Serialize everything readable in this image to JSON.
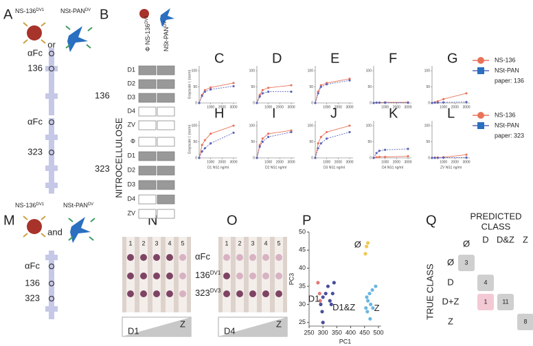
{
  "panel_labels": [
    "A",
    "B",
    "M",
    "N",
    "O",
    "P",
    "Q"
  ],
  "antibodies": [
    {
      "name": "NS-136",
      "sup": "DV1"
    },
    {
      "name": "NSt-PAN",
      "sup": "DV"
    }
  ],
  "panel_a": {
    "or": "or",
    "strips": [
      [
        "αFc",
        "136"
      ],
      [
        "αFc",
        "323"
      ]
    ]
  },
  "panel_b": {
    "phi": "Φ",
    "side_label": "NITROCELLULOSE",
    "strips": [
      {
        "label": "136",
        "rows": [
          "D1",
          "D2",
          "D3",
          "D4",
          "ZV"
        ],
        "filled": [
          [
            true,
            true
          ],
          [
            true,
            true
          ],
          [
            true,
            true
          ],
          [
            false,
            false
          ],
          [
            false,
            false
          ]
        ]
      },
      {
        "label": "323",
        "rows": [
          "Φ",
          "D1",
          "D2",
          "D3",
          "D4",
          "ZV"
        ],
        "filled": [
          [
            false,
            false
          ],
          [
            true,
            true
          ],
          [
            true,
            true
          ],
          [
            true,
            true
          ],
          [
            false,
            true
          ],
          [
            false,
            false
          ]
        ]
      }
    ]
  },
  "chart_data": [
    {
      "type": "line",
      "label": "C",
      "ylabel": "Grayscale I. (norm)",
      "x": [
        0,
        250,
        500,
        1000,
        3000
      ],
      "xlim": [
        0,
        3300
      ],
      "ylim": [
        0,
        115
      ],
      "xticks": [
        1000,
        2000,
        3000
      ],
      "yticks": [
        0,
        50,
        100
      ],
      "series": [
        {
          "color": "#e8735a",
          "values": [
            0,
            25,
            40,
            48,
            62
          ]
        },
        {
          "color": "#5a63b8",
          "values": [
            0,
            22,
            35,
            42,
            52
          ]
        }
      ]
    },
    {
      "type": "line",
      "label": "D",
      "x": [
        0,
        250,
        500,
        1000,
        3000
      ],
      "xlim": [
        0,
        3300
      ],
      "ylim": [
        0,
        115
      ],
      "xticks": [
        1000,
        2000,
        3000
      ],
      "yticks": [
        0,
        50,
        100
      ],
      "series": [
        {
          "color": "#e8735a",
          "values": [
            0,
            25,
            40,
            47,
            55
          ]
        },
        {
          "color": "#5a63b8",
          "values": [
            0,
            20,
            30,
            35,
            35
          ]
        }
      ]
    },
    {
      "type": "line",
      "label": "E",
      "x": [
        0,
        250,
        500,
        1000,
        3000
      ],
      "xlim": [
        0,
        3300
      ],
      "ylim": [
        0,
        115
      ],
      "xticks": [
        1000,
        2000,
        3000
      ],
      "yticks": [
        0,
        50,
        100
      ],
      "series": [
        {
          "color": "#e8735a",
          "values": [
            0,
            35,
            55,
            62,
            75
          ]
        },
        {
          "color": "#5a63b8",
          "values": [
            0,
            30,
            50,
            58,
            70
          ]
        }
      ]
    },
    {
      "type": "line",
      "label": "F",
      "x": [
        0,
        250,
        500,
        1000,
        3000
      ],
      "xlim": [
        0,
        3300
      ],
      "ylim": [
        0,
        115
      ],
      "xticks": [
        1000,
        2000,
        3000
      ],
      "yticks": [
        0,
        50,
        100
      ],
      "series": [
        {
          "color": "#e8735a",
          "values": [
            0,
            1,
            1,
            2,
            2
          ]
        },
        {
          "color": "#5a63b8",
          "values": [
            0,
            1,
            1,
            1,
            1
          ]
        }
      ]
    },
    {
      "type": "line",
      "label": "G",
      "x": [
        0,
        250,
        500,
        1000,
        3000
      ],
      "xlim": [
        0,
        3300
      ],
      "ylim": [
        0,
        115
      ],
      "xticks": [
        1000,
        2000,
        3000
      ],
      "yticks": [
        0,
        50,
        100
      ],
      "legend_note": "paper:  136",
      "series": [
        {
          "name": "NS-136",
          "color": "#e8735a",
          "values": [
            0,
            2,
            5,
            12,
            30
          ]
        },
        {
          "name": "NSt-PAN",
          "color": "#5a63b8",
          "values": [
            0,
            1,
            1,
            2,
            3
          ]
        }
      ]
    },
    {
      "type": "line",
      "label": "H",
      "ylabel": "Grayscale I. (norm)",
      "xlabel": "D1 NS1 ng/ml",
      "x": [
        0,
        250,
        500,
        1000,
        3000
      ],
      "xlim": [
        0,
        3300
      ],
      "ylim": [
        0,
        115
      ],
      "xticks": [
        1000,
        2000,
        3000
      ],
      "yticks": [
        0,
        50,
        100
      ],
      "series": [
        {
          "color": "#e8735a",
          "values": [
            0,
            40,
            55,
            75,
            100
          ]
        },
        {
          "color": "#5a63b8",
          "values": [
            0,
            20,
            30,
            45,
            78
          ]
        }
      ]
    },
    {
      "type": "line",
      "label": "I",
      "xlabel": "D2 NS1 ng/ml",
      "x": [
        0,
        250,
        500,
        1000,
        3000
      ],
      "xlim": [
        0,
        3300
      ],
      "ylim": [
        0,
        115
      ],
      "xticks": [
        1000,
        2000,
        3000
      ],
      "yticks": [
        0,
        50,
        100
      ],
      "series": [
        {
          "color": "#e8735a",
          "values": [
            0,
            40,
            60,
            75,
            85
          ]
        },
        {
          "color": "#5a63b8",
          "values": [
            0,
            35,
            50,
            65,
            80
          ]
        }
      ]
    },
    {
      "type": "line",
      "label": "J",
      "xlabel": "D3 NS1 ng/ml",
      "x": [
        0,
        250,
        500,
        1000,
        3000
      ],
      "xlim": [
        0,
        3300
      ],
      "ylim": [
        0,
        115
      ],
      "xticks": [
        1000,
        2000,
        3000
      ],
      "yticks": [
        0,
        50,
        100
      ],
      "series": [
        {
          "color": "#e8735a",
          "values": [
            0,
            45,
            65,
            80,
            100
          ]
        },
        {
          "color": "#5a63b8",
          "values": [
            0,
            30,
            45,
            60,
            80
          ]
        }
      ]
    },
    {
      "type": "line",
      "label": "K",
      "xlabel": "D4 NS1 ng/ml",
      "x": [
        0,
        250,
        500,
        1000,
        3000
      ],
      "xlim": [
        0,
        3300
      ],
      "ylim": [
        0,
        115
      ],
      "xticks": [
        1000,
        2000,
        3000
      ],
      "yticks": [
        0,
        50,
        100
      ],
      "series": [
        {
          "color": "#e8735a",
          "values": [
            0,
            2,
            3,
            3,
            5
          ]
        },
        {
          "color": "#5a63b8",
          "values": [
            0,
            15,
            22,
            25,
            28
          ]
        }
      ]
    },
    {
      "type": "line",
      "label": "L",
      "xlabel": "ZV NS1 ng/ml",
      "x": [
        0,
        250,
        500,
        1000,
        3000
      ],
      "xlim": [
        0,
        3300
      ],
      "ylim": [
        0,
        115
      ],
      "xticks": [
        1000,
        2000,
        3000
      ],
      "yticks": [
        0,
        50,
        100
      ],
      "legend_note": "paper:  323",
      "series": [
        {
          "name": "NS-136",
          "color": "#e8735a",
          "values": [
            0,
            1,
            1,
            2,
            10
          ]
        },
        {
          "name": "NSt-PAN",
          "color": "#5a63b8",
          "values": [
            0,
            0,
            0,
            1,
            1
          ]
        }
      ]
    },
    {
      "type": "scatter",
      "xlabel": "PC1",
      "ylabel": "PC3",
      "xlim": [
        250,
        510
      ],
      "ylim": [
        24,
        50
      ],
      "xticks": [
        250,
        300,
        350,
        400,
        450,
        500
      ],
      "yticks": [
        25,
        30,
        35,
        40,
        45,
        50
      ],
      "series": [
        {
          "name": "Ø",
          "color": "#f0c850",
          "x": [
            453,
            457,
            462
          ],
          "y": [
            44,
            46,
            47
          ]
        },
        {
          "name": "D1",
          "color": "#e07a7a",
          "x": [
            282,
            288,
            290
          ],
          "y": [
            36,
            33,
            31
          ]
        },
        {
          "name": "D1&Z",
          "color": "#4a4f9a",
          "x": [
            292,
            297,
            300,
            310,
            318,
            325,
            330,
            335,
            340,
            300
          ],
          "y": [
            30,
            28,
            32,
            33,
            35,
            31,
            30,
            33,
            36,
            25
          ]
        },
        {
          "name": "Z",
          "color": "#6bb6e0",
          "x": [
            455,
            460,
            462,
            468,
            472,
            478,
            490,
            470,
            458,
            480
          ],
          "y": [
            29,
            28,
            31,
            33,
            30,
            34,
            35,
            26,
            32,
            29
          ]
        }
      ]
    }
  ],
  "panel_m": {
    "and": "and",
    "strip": [
      "αFc",
      "136",
      "323"
    ]
  },
  "blot_rows": [
    {
      "name": "αFc"
    },
    {
      "name": "136",
      "sup": "DV1"
    },
    {
      "name": "323",
      "sup": "DV3"
    }
  ],
  "panel_n": {
    "lanes": [
      "1",
      "2",
      "3",
      "4",
      "5"
    ],
    "wedge": [
      "D1",
      "Z"
    ]
  },
  "panel_o": {
    "lanes": [
      "1",
      "2",
      "3",
      "4",
      "5"
    ],
    "wedge": [
      "D4",
      "Z"
    ]
  },
  "panel_q": {
    "title": [
      "PREDICTED",
      "CLASS"
    ],
    "true_label": "TRUE CLASS",
    "columns": [
      "Ø",
      "D",
      "D&Z",
      "Z"
    ],
    "rows": [
      "Ø",
      "D",
      "D+Z",
      "Z"
    ],
    "matrix": [
      [
        3,
        null,
        null,
        null
      ],
      [
        null,
        4,
        null,
        null
      ],
      [
        null,
        1,
        11,
        null
      ],
      [
        null,
        null,
        null,
        8
      ]
    ]
  }
}
